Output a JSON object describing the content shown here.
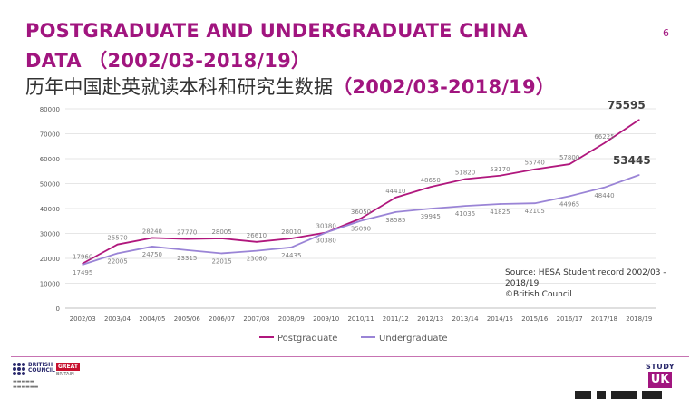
{
  "header": {
    "title_line1": "POSTGRADUATE AND UNDERGRADUATE CHINA",
    "title_line2": "DATA （2002/03-2018/19）",
    "title_cn": "历年中国赴英就读本科和研究生数据",
    "title_cn_range": "（2002/03-2018/19）",
    "page_number": "6"
  },
  "chart_data": {
    "type": "line",
    "title": "",
    "categories": [
      "2002/03",
      "2003/04",
      "2004/05",
      "2005/06",
      "2006/07",
      "2007/08",
      "2008/09",
      "2009/10",
      "2010/11",
      "2011/12",
      "2012/13",
      "2013/14",
      "2014/15",
      "2015/16",
      "2016/17",
      "2017/18",
      "2018/19"
    ],
    "ylim": [
      0,
      80000
    ],
    "yticks": [
      0,
      10000,
      20000,
      30000,
      40000,
      50000,
      60000,
      70000,
      80000
    ],
    "grid": true,
    "legend_position": "bottom",
    "series": [
      {
        "name": "Postgraduate",
        "color": "#b0177d",
        "values": [
          17960,
          25570,
          28240,
          27770,
          28005,
          26610,
          28010,
          30380,
          36050,
          44410,
          48650,
          51820,
          53170,
          55740,
          57800,
          66225,
          75595
        ],
        "labels": [
          "17960",
          "25570",
          "28240",
          "27770",
          "28005",
          "26610",
          "28010",
          "30380",
          "36050",
          "44410",
          "48650",
          "51820",
          "53170",
          "55740",
          "57800",
          "66225",
          "75595"
        ]
      },
      {
        "name": "Undergraduate",
        "color": "#9a84d6",
        "values": [
          17495,
          22005,
          24750,
          23315,
          22015,
          23060,
          24435,
          30380,
          35090,
          38585,
          39945,
          41035,
          41825,
          42105,
          44965,
          48440,
          53445
        ],
        "labels": [
          "17495",
          "22005",
          "24750",
          "23315",
          "22015",
          "23060",
          "24435",
          "30380",
          "35090",
          "38585",
          "39945",
          "41035",
          "41825",
          "42105",
          "44965",
          "48440",
          "53445"
        ]
      }
    ]
  },
  "source": {
    "line1": "Source: HESA Student record 2002/03 -",
    "line2": "2018/19",
    "line3": "©British Council"
  },
  "footer": {
    "british_council_line1": "BRITISH",
    "british_council_line2": "COUNCIL",
    "great_label": "GREAT",
    "great_sub": "BRITAIN",
    "study_label": "STUDY",
    "study_mark": "UK"
  }
}
